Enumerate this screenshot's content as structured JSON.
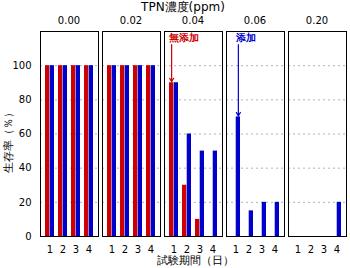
{
  "chart_data": {
    "type": "bar",
    "title": "TPN濃度(ppm)",
    "xlabel": "試験期間（日）",
    "ylabel": "生存率（％）",
    "panels": [
      "0.00",
      "0.02",
      "0.04",
      "0.06",
      "0.20"
    ],
    "categories": [
      "1",
      "2",
      "3",
      "4"
    ],
    "series": [
      {
        "name": "無添加",
        "color": "#cc0000",
        "values": [
          [
            100,
            100,
            100,
            100
          ],
          [
            100,
            100,
            100,
            100
          ],
          [
            90,
            30,
            10,
            0
          ],
          [
            0,
            0,
            0,
            0
          ],
          [
            0,
            0,
            0,
            0
          ]
        ]
      },
      {
        "name": "添加",
        "color": "#0000cc",
        "values": [
          [
            100,
            100,
            100,
            100
          ],
          [
            100,
            100,
            100,
            100
          ],
          [
            90,
            60,
            50,
            50
          ],
          [
            70,
            15,
            20,
            20
          ],
          [
            0,
            0,
            0,
            20
          ]
        ]
      }
    ],
    "ylim": [
      0,
      120
    ],
    "yticks": [
      0,
      20,
      40,
      60,
      80,
      100
    ],
    "grid": true,
    "annotations": [
      {
        "text": "無添加",
        "color": "#cc0000",
        "panel": "0.04",
        "category": "1",
        "series": "無添加"
      },
      {
        "text": "添加",
        "color": "#0000cc",
        "panel": "0.06",
        "category": "1",
        "series": "添加"
      }
    ]
  }
}
